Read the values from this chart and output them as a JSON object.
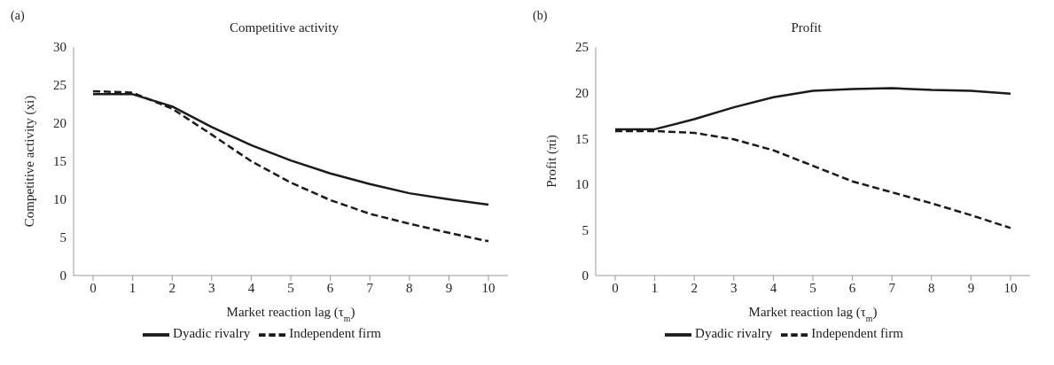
{
  "chart_data": [
    {
      "type": "line",
      "title": "Competitive activity",
      "xlabel": "Market reaction lag (τ$_{m}$)",
      "ylabel": "Competitive activity (xi)",
      "annotations": [
        "(a)"
      ],
      "categories": [
        "0",
        "1",
        "2",
        "3",
        "4",
        "5",
        "6",
        "7",
        "8",
        "9",
        "10"
      ],
      "series": [
        {
          "name": "Dyadic rivalry",
          "color": "#1a1a1a",
          "line_style": "solid",
          "values": [
            23.8,
            23.8,
            22.2,
            19.5,
            17.1,
            15.1,
            13.4,
            12.0,
            10.8,
            10.0,
            9.3
          ]
        },
        {
          "name": "Independent firm",
          "color": "#1a1a1a",
          "line_style": "dashed",
          "values": [
            24.2,
            24.0,
            21.9,
            18.5,
            15.0,
            12.2,
            9.9,
            8.1,
            6.8,
            5.6,
            4.5
          ]
        }
      ],
      "ylim": [
        0,
        30
      ],
      "yticks": [
        0,
        5,
        10,
        15,
        20,
        25,
        30
      ],
      "grid": false,
      "legend": "bottom"
    },
    {
      "type": "line",
      "title": "Profit",
      "xlabel": "Market reaction lag (τ$_{m}$)",
      "ylabel": "Profit (πi)",
      "annotations": [
        "(b)"
      ],
      "categories": [
        "0",
        "1",
        "2",
        "3",
        "4",
        "5",
        "6",
        "7",
        "8",
        "9",
        "10"
      ],
      "series": [
        {
          "name": "Dyadic rivalry",
          "color": "#1a1a1a",
          "line_style": "solid",
          "values": [
            16.0,
            16.0,
            17.1,
            18.4,
            19.5,
            20.2,
            20.4,
            20.5,
            20.3,
            20.2,
            19.9
          ]
        },
        {
          "name": "Independent firm",
          "color": "#1a1a1a",
          "line_style": "dashed",
          "values": [
            15.8,
            15.8,
            15.6,
            14.9,
            13.7,
            12.0,
            10.3,
            9.1,
            7.9,
            6.6,
            5.2
          ]
        }
      ],
      "ylim": [
        0,
        25
      ],
      "yticks": [
        0,
        5,
        10,
        15,
        20,
        25
      ],
      "grid": false,
      "legend": "bottom"
    }
  ]
}
